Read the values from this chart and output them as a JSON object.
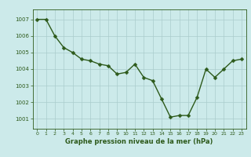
{
  "x": [
    0,
    1,
    2,
    3,
    4,
    5,
    6,
    7,
    8,
    9,
    10,
    11,
    12,
    13,
    14,
    15,
    16,
    17,
    18,
    19,
    20,
    21,
    22,
    23
  ],
  "y": [
    1007.0,
    1007.0,
    1006.0,
    1005.3,
    1005.0,
    1004.6,
    1004.5,
    1004.3,
    1004.2,
    1003.7,
    1003.8,
    1004.3,
    1003.5,
    1003.3,
    1002.2,
    1001.1,
    1001.2,
    1001.2,
    1002.3,
    1004.0,
    1003.5,
    1004.0,
    1004.5,
    1004.6
  ],
  "line_color": "#2d5a1b",
  "marker_color": "#2d5a1b",
  "bg_color": "#cceaea",
  "grid_color": "#aacccc",
  "xlabel": "Graphe pression niveau de la mer (hPa)",
  "xlabel_color": "#2d5a1b",
  "tick_color": "#2d5a1b",
  "ylim": [
    1000.4,
    1007.6
  ],
  "yticks": [
    1001,
    1002,
    1003,
    1004,
    1005,
    1006,
    1007
  ],
  "xticks": [
    0,
    1,
    2,
    3,
    4,
    5,
    6,
    7,
    8,
    9,
    10,
    11,
    12,
    13,
    14,
    15,
    16,
    17,
    18,
    19,
    20,
    21,
    22,
    23
  ],
  "axis_color": "#2d5a1b",
  "marker_size": 2.5,
  "line_width": 1.0
}
